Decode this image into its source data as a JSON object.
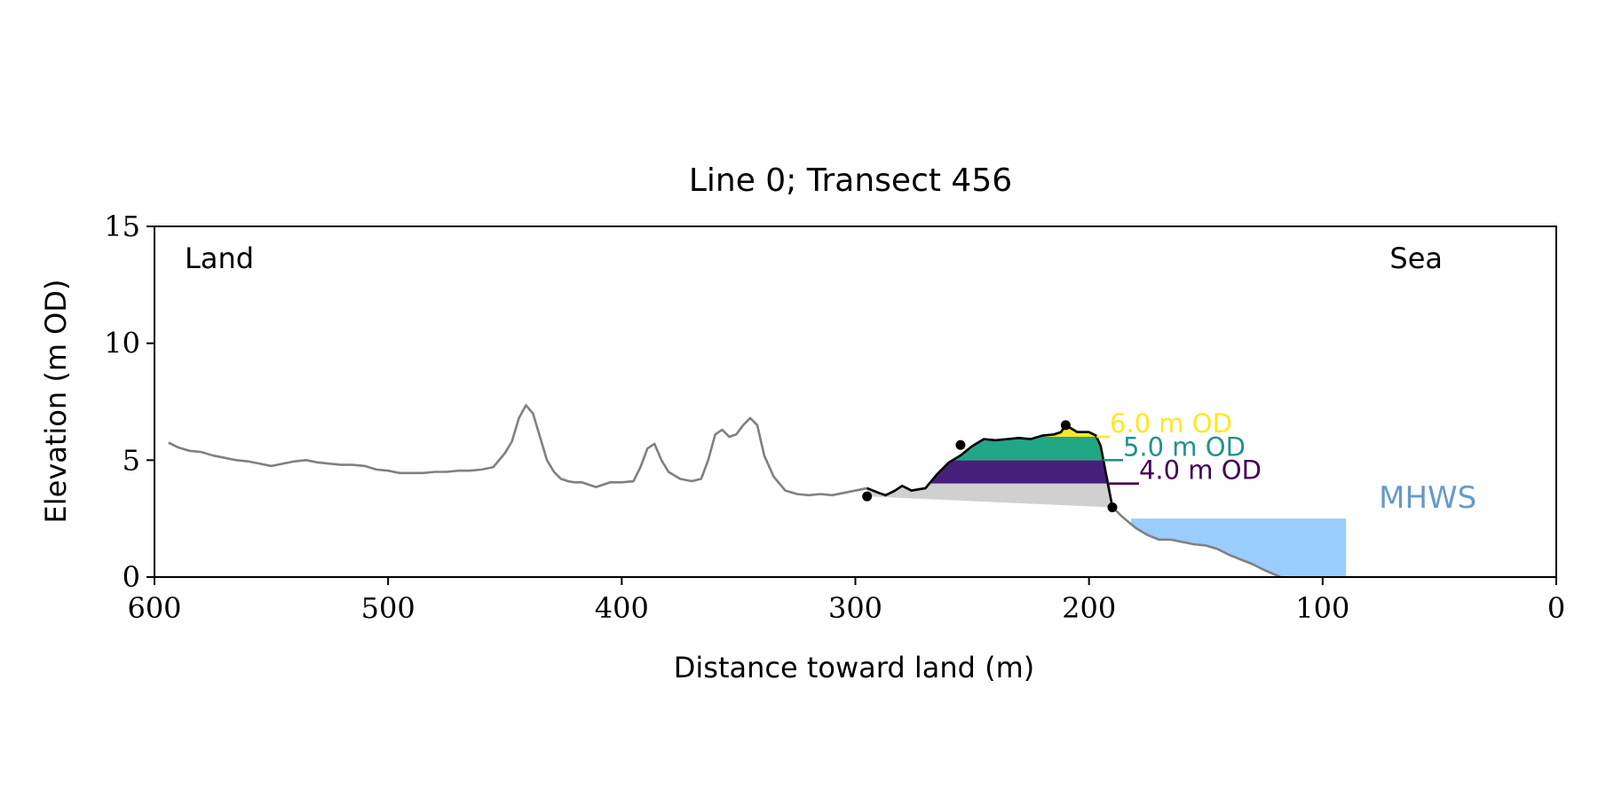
{
  "chart_data": {
    "type": "line",
    "title": "Line 0; Transect 456",
    "xlabel": "Distance toward land (m)",
    "ylabel": "Elevation (m OD)",
    "xlim": [
      600,
      0
    ],
    "ylim": [
      0,
      15
    ],
    "x_ticks": [
      600,
      500,
      400,
      300,
      200,
      100,
      0
    ],
    "y_ticks": [
      0,
      5,
      10,
      15
    ],
    "grid": false,
    "corner_labels": {
      "left": "Land",
      "right": "Sea"
    },
    "mhws": {
      "label": "MHWS",
      "level": 2.5,
      "x_from": 182,
      "x_to": 90,
      "color": "#99CCFF",
      "label_color": "#6699CC"
    },
    "profile": {
      "x": [
        594,
        590,
        585,
        580,
        575,
        570,
        565,
        560,
        555,
        550,
        545,
        540,
        535,
        530,
        525,
        520,
        515,
        510,
        505,
        500,
        495,
        490,
        485,
        480,
        475,
        470,
        465,
        460,
        455,
        450,
        447,
        444,
        441,
        438,
        435,
        432,
        429,
        426,
        423,
        420,
        417,
        414,
        411,
        408,
        405,
        400,
        395,
        392,
        389,
        386,
        383,
        380,
        375,
        370,
        366,
        363,
        360,
        357,
        354,
        351,
        348,
        345,
        342,
        339,
        335,
        330,
        325,
        320,
        315,
        310,
        305,
        300,
        295,
        290,
        287,
        283,
        280,
        276,
        270,
        265,
        260,
        255,
        250,
        245,
        240,
        235,
        230,
        225,
        220,
        215,
        212,
        210,
        205,
        200,
        197,
        195,
        190,
        186,
        180,
        175,
        170,
        165,
        160,
        155,
        150,
        145,
        140,
        135,
        130,
        125,
        118
      ],
      "y": [
        5.75,
        5.55,
        5.4,
        5.35,
        5.2,
        5.1,
        5.0,
        4.95,
        4.85,
        4.75,
        4.85,
        4.95,
        5.0,
        4.9,
        4.85,
        4.8,
        4.8,
        4.75,
        4.6,
        4.55,
        4.45,
        4.45,
        4.45,
        4.5,
        4.5,
        4.55,
        4.55,
        4.6,
        4.7,
        5.3,
        5.8,
        6.8,
        7.35,
        7.0,
        6.0,
        5.0,
        4.5,
        4.2,
        4.1,
        4.05,
        4.05,
        3.95,
        3.85,
        3.95,
        4.05,
        4.05,
        4.1,
        4.7,
        5.5,
        5.7,
        5.0,
        4.5,
        4.2,
        4.1,
        4.2,
        5.0,
        6.1,
        6.3,
        6.0,
        6.1,
        6.5,
        6.8,
        6.5,
        5.2,
        4.3,
        3.7,
        3.55,
        3.5,
        3.55,
        3.5,
        3.6,
        3.7,
        3.8,
        3.6,
        3.5,
        3.7,
        3.9,
        3.7,
        3.8,
        4.4,
        4.9,
        5.2,
        5.6,
        5.9,
        5.85,
        5.9,
        5.95,
        5.9,
        6.05,
        6.1,
        6.2,
        6.5,
        6.2,
        6.2,
        6.05,
        5.6,
        3.0,
        2.6,
        2.1,
        1.8,
        1.6,
        1.6,
        1.5,
        1.4,
        1.35,
        1.2,
        0.95,
        0.75,
        0.55,
        0.3,
        0.0
      ]
    },
    "dune_segment": {
      "x_start": 295,
      "x_end": 190,
      "base_line": {
        "x": [
          295,
          190
        ],
        "y": [
          3.45,
          2.98
        ]
      }
    },
    "key_points": [
      {
        "x": 295,
        "y": 3.45
      },
      {
        "x": 255,
        "y": 5.65
      },
      {
        "x": 210,
        "y": 6.5
      },
      {
        "x": 190,
        "y": 2.98
      }
    ],
    "levels": [
      {
        "label": "4.0 m OD",
        "value": 4.0,
        "color": "#440154",
        "fill": "#46207A"
      },
      {
        "label": "5.0 m OD",
        "value": 5.0,
        "color": "#21918C",
        "fill": "#21A785"
      },
      {
        "label": "6.0 m OD",
        "value": 6.0,
        "color": "#FDE725",
        "fill": "#FDE725"
      }
    ],
    "colors": {
      "profile": "#808080",
      "dune_profile": "#000000",
      "below_level_fill": "#D0D0D0"
    }
  }
}
